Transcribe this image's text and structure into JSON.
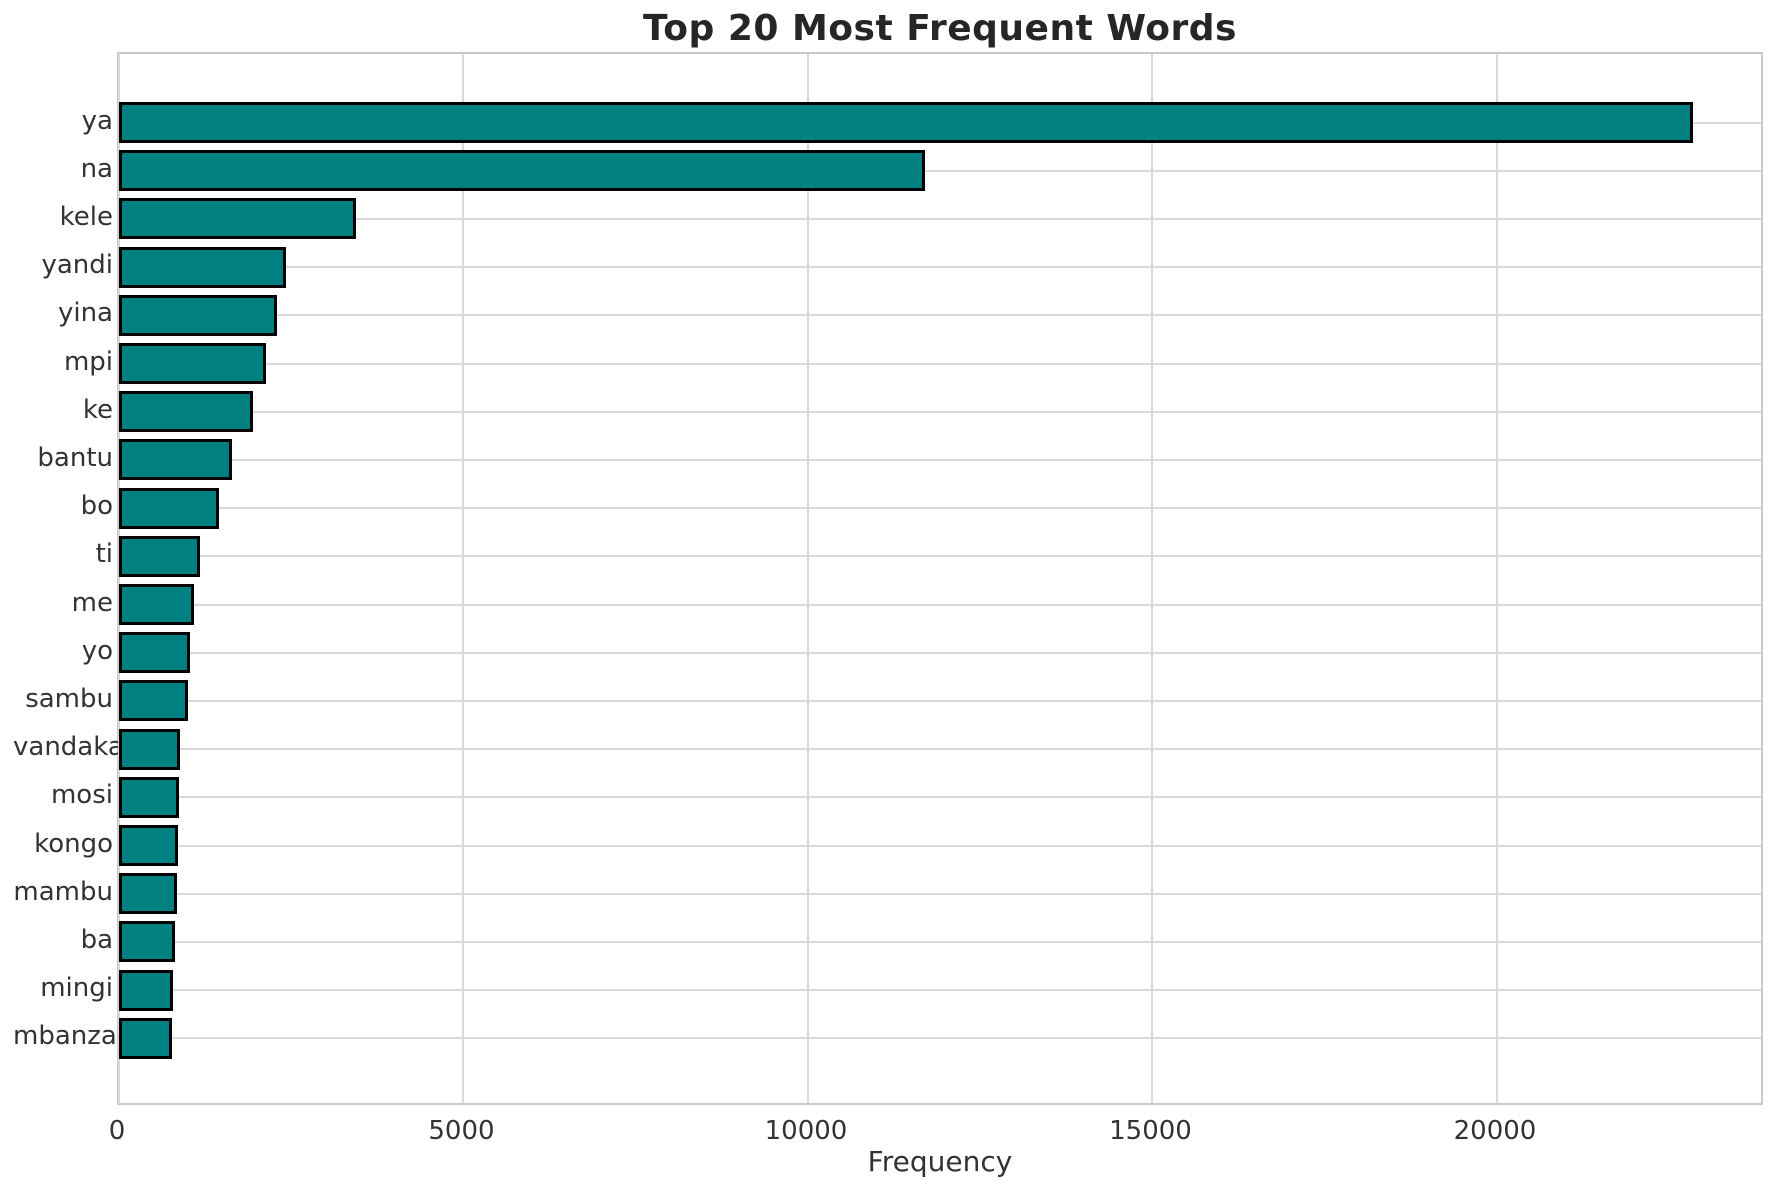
{
  "chart_data": {
    "type": "bar",
    "orientation": "horizontal",
    "title": "Top 20 Most Frequent Words",
    "xlabel": "Frequency",
    "ylabel": "",
    "categories": [
      "ya",
      "na",
      "kele",
      "yandi",
      "yina",
      "mpi",
      "ke",
      "bantu",
      "bo",
      "ti",
      "me",
      "yo",
      "sambu",
      "vandaka",
      "mosi",
      "kongo",
      "mambu",
      "ba",
      "mingi",
      "mbanza"
    ],
    "values": [
      22850,
      11700,
      3440,
      2420,
      2290,
      2130,
      1940,
      1640,
      1450,
      1175,
      1090,
      1025,
      995,
      880,
      872,
      850,
      846,
      820,
      778,
      770
    ],
    "xticks": [
      0,
      5000,
      10000,
      15000,
      20000
    ],
    "xtick_labels": [
      "0",
      "5000",
      "10000",
      "15000",
      "20000"
    ],
    "xlim": [
      0,
      23890
    ],
    "grid": true,
    "legend": false,
    "colors": {
      "bar_fill": "#008080",
      "bar_edge": "#000000",
      "grid_line": "#d9d9d9",
      "plot_border": "#c9c9c9",
      "title_text": "#262626",
      "tick_text": "#333333",
      "background": "#ffffff"
    }
  }
}
